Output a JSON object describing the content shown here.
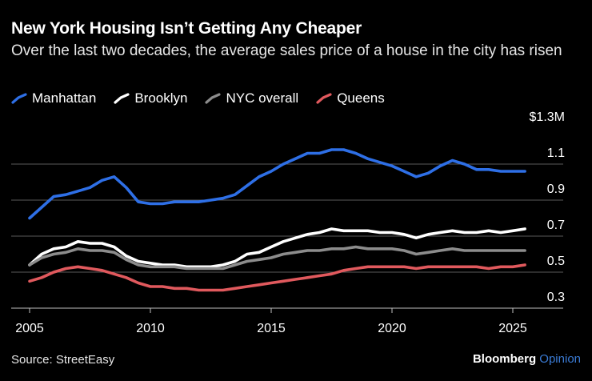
{
  "title": "New York Housing Isn’t Getting Any Cheaper",
  "subtitle": "Over the last two decades, the average sales price of a house in the city has risen",
  "source": "Source: StreetEasy",
  "brand": {
    "name": "Bloomberg",
    "suffix": "Opinion"
  },
  "colors": {
    "background": "#000000",
    "grid": "#5a5a5a",
    "manhattan": "#2e6fe6",
    "brooklyn": "#ffffff",
    "nyc_overall": "#8c8c8c",
    "queens": "#e0595d",
    "brand_accent": "#3a7bd5"
  },
  "chart_data": {
    "type": "line",
    "title": "New York Housing Isn’t Getting Any Cheaper",
    "xlabel": "",
    "ylabel": "",
    "xlim": [
      2005,
      2026
    ],
    "ylim": [
      0.3,
      1.3
    ],
    "x_ticks": [
      2005,
      2010,
      2015,
      2020,
      2025
    ],
    "y_ticks": [
      0.3,
      0.5,
      0.7,
      0.9,
      1.1,
      1.3
    ],
    "y_tick_labels": [
      "0.3",
      "0.5",
      "0.7",
      "0.9",
      "1.1",
      "$1.3M"
    ],
    "grid": true,
    "legend": "top-left",
    "series": [
      {
        "name": "Manhattan",
        "color": "#2e6fe6",
        "points": [
          [
            2005.0,
            0.8
          ],
          [
            2005.5,
            0.86
          ],
          [
            2006.0,
            0.92
          ],
          [
            2006.5,
            0.93
          ],
          [
            2007.0,
            0.95
          ],
          [
            2007.5,
            0.97
          ],
          [
            2008.0,
            1.01
          ],
          [
            2008.5,
            1.03
          ],
          [
            2009.0,
            0.97
          ],
          [
            2009.5,
            0.89
          ],
          [
            2010.0,
            0.88
          ],
          [
            2010.5,
            0.88
          ],
          [
            2011.0,
            0.89
          ],
          [
            2011.5,
            0.89
          ],
          [
            2012.0,
            0.89
          ],
          [
            2012.5,
            0.9
          ],
          [
            2013.0,
            0.91
          ],
          [
            2013.5,
            0.93
          ],
          [
            2014.0,
            0.98
          ],
          [
            2014.5,
            1.03
          ],
          [
            2015.0,
            1.06
          ],
          [
            2015.5,
            1.1
          ],
          [
            2016.0,
            1.13
          ],
          [
            2016.5,
            1.16
          ],
          [
            2017.0,
            1.16
          ],
          [
            2017.5,
            1.18
          ],
          [
            2018.0,
            1.18
          ],
          [
            2018.5,
            1.16
          ],
          [
            2019.0,
            1.13
          ],
          [
            2019.5,
            1.11
          ],
          [
            2020.0,
            1.09
          ],
          [
            2020.5,
            1.06
          ],
          [
            2021.0,
            1.03
          ],
          [
            2021.5,
            1.05
          ],
          [
            2022.0,
            1.09
          ],
          [
            2022.5,
            1.12
          ],
          [
            2023.0,
            1.1
          ],
          [
            2023.5,
            1.07
          ],
          [
            2024.0,
            1.07
          ],
          [
            2024.5,
            1.06
          ],
          [
            2025.0,
            1.06
          ],
          [
            2025.5,
            1.06
          ]
        ]
      },
      {
        "name": "Brooklyn",
        "color": "#ffffff",
        "points": [
          [
            2005.0,
            0.54
          ],
          [
            2005.5,
            0.6
          ],
          [
            2006.0,
            0.63
          ],
          [
            2006.5,
            0.64
          ],
          [
            2007.0,
            0.67
          ],
          [
            2007.5,
            0.66
          ],
          [
            2008.0,
            0.66
          ],
          [
            2008.5,
            0.64
          ],
          [
            2009.0,
            0.59
          ],
          [
            2009.5,
            0.56
          ],
          [
            2010.0,
            0.55
          ],
          [
            2010.5,
            0.54
          ],
          [
            2011.0,
            0.54
          ],
          [
            2011.5,
            0.53
          ],
          [
            2012.0,
            0.53
          ],
          [
            2012.5,
            0.53
          ],
          [
            2013.0,
            0.54
          ],
          [
            2013.5,
            0.56
          ],
          [
            2014.0,
            0.6
          ],
          [
            2014.5,
            0.61
          ],
          [
            2015.0,
            0.64
          ],
          [
            2015.5,
            0.67
          ],
          [
            2016.0,
            0.69
          ],
          [
            2016.5,
            0.71
          ],
          [
            2017.0,
            0.72
          ],
          [
            2017.5,
            0.74
          ],
          [
            2018.0,
            0.73
          ],
          [
            2018.5,
            0.73
          ],
          [
            2019.0,
            0.73
          ],
          [
            2019.5,
            0.72
          ],
          [
            2020.0,
            0.72
          ],
          [
            2020.5,
            0.71
          ],
          [
            2021.0,
            0.69
          ],
          [
            2021.5,
            0.71
          ],
          [
            2022.0,
            0.72
          ],
          [
            2022.5,
            0.73
          ],
          [
            2023.0,
            0.72
          ],
          [
            2023.5,
            0.72
          ],
          [
            2024.0,
            0.73
          ],
          [
            2024.5,
            0.72
          ],
          [
            2025.0,
            0.73
          ],
          [
            2025.5,
            0.74
          ]
        ]
      },
      {
        "name": "NYC overall",
        "color": "#8c8c8c",
        "points": [
          [
            2005.0,
            0.54
          ],
          [
            2005.5,
            0.58
          ],
          [
            2006.0,
            0.6
          ],
          [
            2006.5,
            0.61
          ],
          [
            2007.0,
            0.63
          ],
          [
            2007.5,
            0.62
          ],
          [
            2008.0,
            0.62
          ],
          [
            2008.5,
            0.61
          ],
          [
            2009.0,
            0.57
          ],
          [
            2009.5,
            0.54
          ],
          [
            2010.0,
            0.53
          ],
          [
            2010.5,
            0.53
          ],
          [
            2011.0,
            0.53
          ],
          [
            2011.5,
            0.52
          ],
          [
            2012.0,
            0.52
          ],
          [
            2012.5,
            0.52
          ],
          [
            2013.0,
            0.52
          ],
          [
            2013.5,
            0.54
          ],
          [
            2014.0,
            0.56
          ],
          [
            2014.5,
            0.57
          ],
          [
            2015.0,
            0.58
          ],
          [
            2015.5,
            0.6
          ],
          [
            2016.0,
            0.61
          ],
          [
            2016.5,
            0.62
          ],
          [
            2017.0,
            0.62
          ],
          [
            2017.5,
            0.63
          ],
          [
            2018.0,
            0.63
          ],
          [
            2018.5,
            0.64
          ],
          [
            2019.0,
            0.63
          ],
          [
            2019.5,
            0.63
          ],
          [
            2020.0,
            0.63
          ],
          [
            2020.5,
            0.62
          ],
          [
            2021.0,
            0.6
          ],
          [
            2021.5,
            0.61
          ],
          [
            2022.0,
            0.62
          ],
          [
            2022.5,
            0.63
          ],
          [
            2023.0,
            0.62
          ],
          [
            2023.5,
            0.62
          ],
          [
            2024.0,
            0.62
          ],
          [
            2024.5,
            0.62
          ],
          [
            2025.0,
            0.62
          ],
          [
            2025.5,
            0.62
          ]
        ]
      },
      {
        "name": "Queens",
        "color": "#e0595d",
        "points": [
          [
            2005.0,
            0.45
          ],
          [
            2005.5,
            0.47
          ],
          [
            2006.0,
            0.5
          ],
          [
            2006.5,
            0.52
          ],
          [
            2007.0,
            0.53
          ],
          [
            2007.5,
            0.52
          ],
          [
            2008.0,
            0.51
          ],
          [
            2008.5,
            0.49
          ],
          [
            2009.0,
            0.47
          ],
          [
            2009.5,
            0.44
          ],
          [
            2010.0,
            0.42
          ],
          [
            2010.5,
            0.42
          ],
          [
            2011.0,
            0.41
          ],
          [
            2011.5,
            0.41
          ],
          [
            2012.0,
            0.4
          ],
          [
            2012.5,
            0.4
          ],
          [
            2013.0,
            0.4
          ],
          [
            2013.5,
            0.41
          ],
          [
            2014.0,
            0.42
          ],
          [
            2014.5,
            0.43
          ],
          [
            2015.0,
            0.44
          ],
          [
            2015.5,
            0.45
          ],
          [
            2016.0,
            0.46
          ],
          [
            2016.5,
            0.47
          ],
          [
            2017.0,
            0.48
          ],
          [
            2017.5,
            0.49
          ],
          [
            2018.0,
            0.51
          ],
          [
            2018.5,
            0.52
          ],
          [
            2019.0,
            0.53
          ],
          [
            2019.5,
            0.53
          ],
          [
            2020.0,
            0.53
          ],
          [
            2020.5,
            0.53
          ],
          [
            2021.0,
            0.52
          ],
          [
            2021.5,
            0.53
          ],
          [
            2022.0,
            0.53
          ],
          [
            2022.5,
            0.53
          ],
          [
            2023.0,
            0.53
          ],
          [
            2023.5,
            0.53
          ],
          [
            2024.0,
            0.52
          ],
          [
            2024.5,
            0.53
          ],
          [
            2025.0,
            0.53
          ],
          [
            2025.5,
            0.54
          ]
        ]
      }
    ]
  }
}
